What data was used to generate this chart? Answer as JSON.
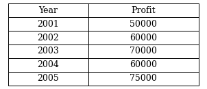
{
  "col_headers": [
    "Year",
    "Profit"
  ],
  "rows": [
    [
      "2001",
      "50000"
    ],
    [
      "2002",
      "60000"
    ],
    [
      "2003",
      "70000"
    ],
    [
      "2004",
      "60000"
    ],
    [
      "2005",
      "75000"
    ]
  ],
  "background_color": "#ffffff",
  "border_color": "#000000",
  "text_color": "#000000",
  "fontsize": 9,
  "figsize": [
    3.02,
    1.3
  ],
  "dpi": 100
}
